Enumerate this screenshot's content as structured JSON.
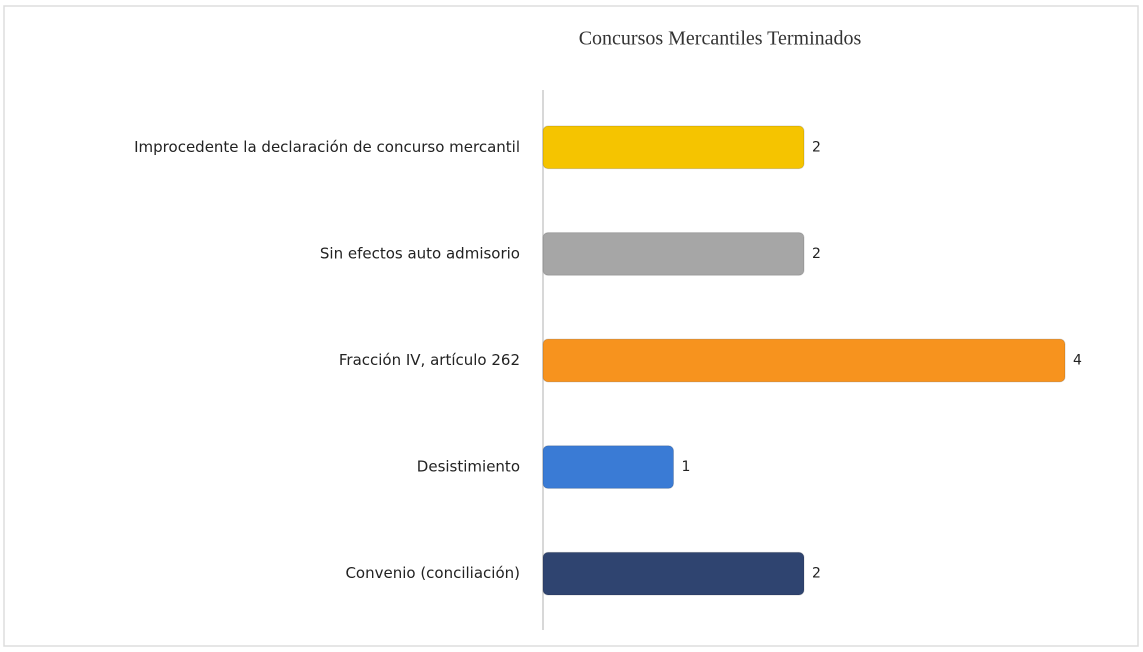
{
  "chart_data": {
    "type": "hbar",
    "title": "Concursos Mercantiles Terminados",
    "categories": [
      "Improcedente la declaración de concurso mercantil",
      "Sin efectos auto admisorio",
      "Fracción IV, artículo 262",
      "Desistimiento",
      "Convenio (conciliación)"
    ],
    "values": [
      2,
      2,
      4,
      1,
      2
    ],
    "colors": [
      "#f5c400",
      "#a6a6a6",
      "#f7931e",
      "#3a7bd5",
      "#2f4470"
    ]
  }
}
